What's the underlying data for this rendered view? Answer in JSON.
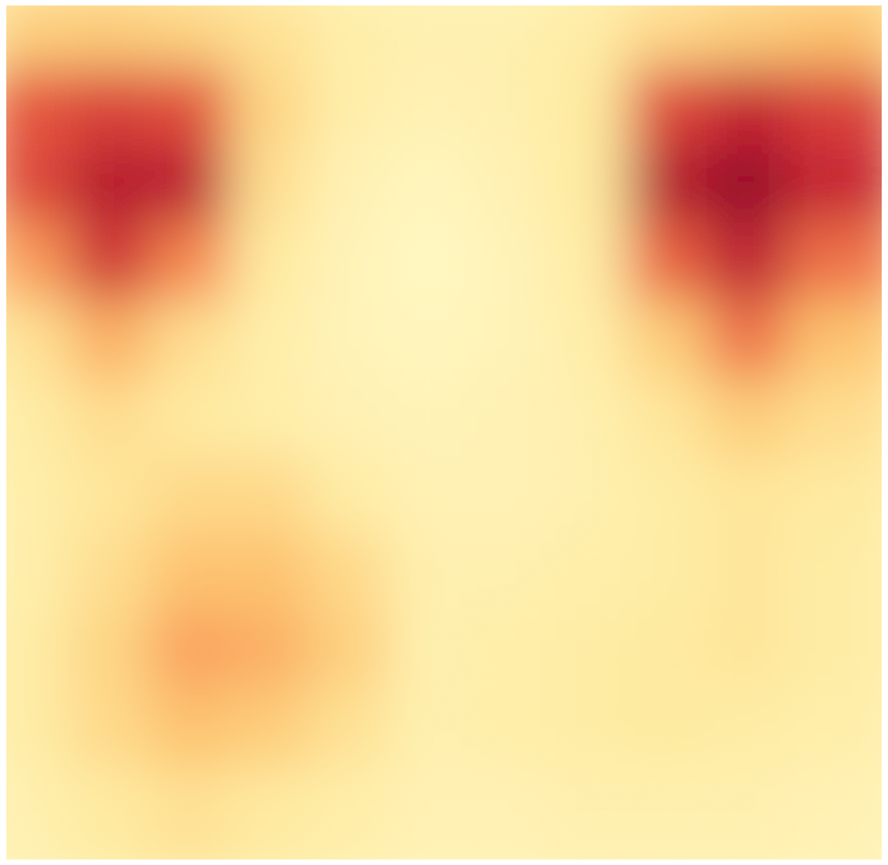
{
  "chart_data": {
    "type": "heatmap",
    "title": "",
    "xlabel": "",
    "ylabel": "",
    "grid": false,
    "legend": "none",
    "colormap": "YlOrRd",
    "color_stops": [
      "#fff9c4",
      "#fee89a",
      "#fdc26a",
      "#f88a4a",
      "#e24a33",
      "#c0132b",
      "#8b0022"
    ],
    "value_range": [
      0,
      1
    ],
    "grid_shape": [
      11,
      11
    ],
    "z": [
      [
        0.28,
        0.3,
        0.26,
        0.2,
        0.12,
        0.1,
        0.1,
        0.14,
        0.24,
        0.3,
        0.34
      ],
      [
        0.66,
        0.72,
        0.68,
        0.26,
        0.12,
        0.08,
        0.1,
        0.16,
        0.7,
        0.82,
        0.72
      ],
      [
        0.7,
        0.88,
        0.86,
        0.22,
        0.08,
        0.04,
        0.08,
        0.16,
        0.88,
        0.98,
        0.82
      ],
      [
        0.46,
        0.78,
        0.52,
        0.16,
        0.06,
        0.02,
        0.06,
        0.14,
        0.62,
        0.86,
        0.58
      ],
      [
        0.2,
        0.4,
        0.22,
        0.12,
        0.06,
        0.04,
        0.06,
        0.12,
        0.3,
        0.58,
        0.34
      ],
      [
        0.14,
        0.22,
        0.16,
        0.12,
        0.08,
        0.06,
        0.08,
        0.1,
        0.18,
        0.3,
        0.22
      ],
      [
        0.12,
        0.18,
        0.24,
        0.24,
        0.14,
        0.08,
        0.08,
        0.1,
        0.14,
        0.18,
        0.16
      ],
      [
        0.12,
        0.22,
        0.34,
        0.34,
        0.24,
        0.1,
        0.1,
        0.12,
        0.14,
        0.18,
        0.14
      ],
      [
        0.14,
        0.26,
        0.44,
        0.4,
        0.28,
        0.1,
        0.12,
        0.14,
        0.16,
        0.18,
        0.14
      ],
      [
        0.14,
        0.24,
        0.34,
        0.3,
        0.2,
        0.1,
        0.12,
        0.14,
        0.16,
        0.14,
        0.12
      ],
      [
        0.1,
        0.16,
        0.2,
        0.16,
        0.12,
        0.08,
        0.08,
        0.1,
        0.1,
        0.1,
        0.08
      ]
    ]
  }
}
